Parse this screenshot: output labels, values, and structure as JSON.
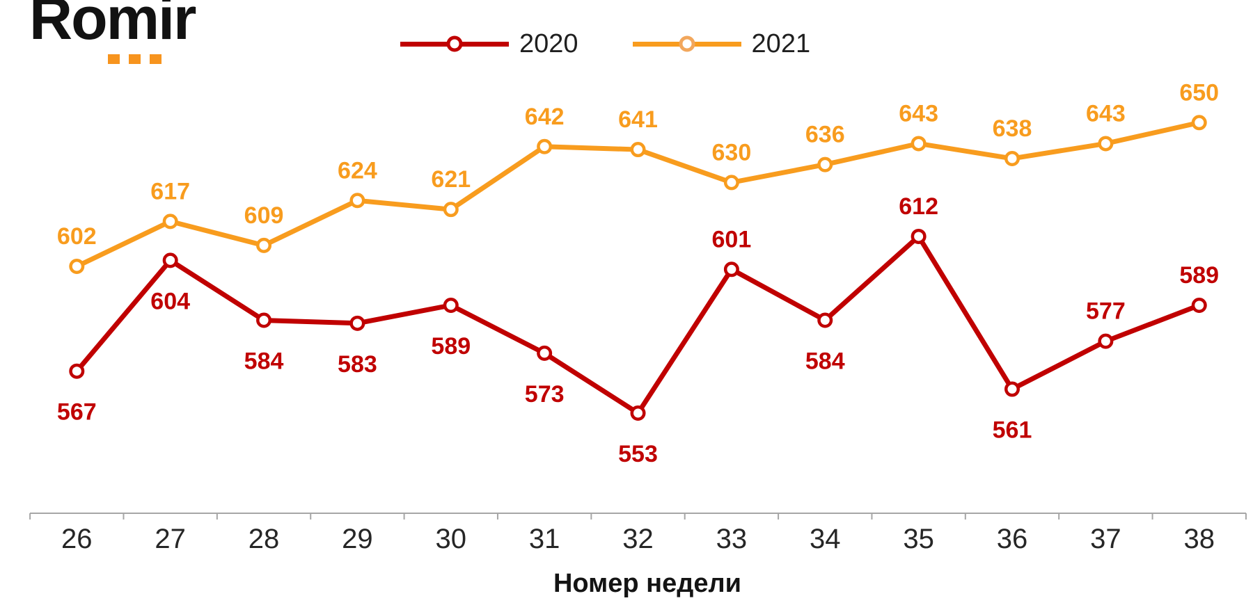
{
  "logo": {
    "text": "Romir",
    "dots_color": "#F7941E"
  },
  "legend": {
    "items": [
      {
        "label": "2020",
        "color": "#C00000",
        "ring": "#C00000"
      },
      {
        "label": "2021",
        "color": "#F89C1E",
        "ring": "#F2A75C"
      }
    ]
  },
  "colors": {
    "red": "#C00000",
    "orange": "#F89C1E",
    "axis": "#A6A6A6",
    "tick_text": "#262626"
  },
  "chart_data": {
    "type": "line",
    "categories": [
      26,
      27,
      28,
      29,
      30,
      31,
      32,
      33,
      34,
      35,
      36,
      37,
      38
    ],
    "xlabel": "Номер недели",
    "ylim": [
      540,
      665
    ],
    "grid": false,
    "y_axis_visible": false,
    "legend_position": "top",
    "marker_style": "open-circle",
    "series": [
      {
        "name": "2020",
        "color": "#C00000",
        "values": [
          567,
          604,
          584,
          583,
          589,
          573,
          553,
          601,
          584,
          612,
          561,
          577,
          589
        ],
        "label_positions": [
          "below",
          "below",
          "below",
          "below",
          "below",
          "below",
          "below",
          "above",
          "below",
          "above",
          "below",
          "above",
          "above"
        ]
      },
      {
        "name": "2021",
        "color": "#F89C1E",
        "values": [
          602,
          617,
          609,
          624,
          621,
          642,
          641,
          630,
          636,
          643,
          638,
          643,
          650
        ],
        "label_positions": [
          "above",
          "above",
          "above",
          "above",
          "above",
          "above",
          "above",
          "above",
          "above",
          "above",
          "above",
          "above",
          "above"
        ]
      }
    ]
  }
}
